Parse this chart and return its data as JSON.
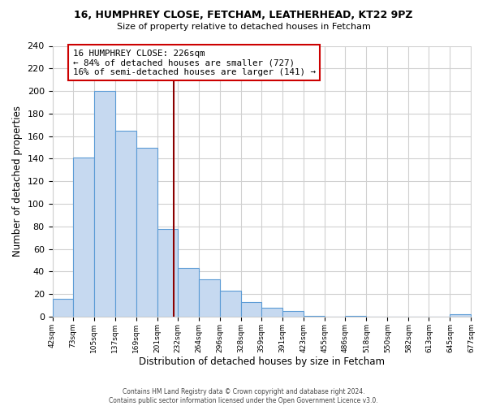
{
  "title": "16, HUMPHREY CLOSE, FETCHAM, LEATHERHEAD, KT22 9PZ",
  "subtitle": "Size of property relative to detached houses in Fetcham",
  "xlabel": "Distribution of detached houses by size in Fetcham",
  "ylabel": "Number of detached properties",
  "bin_edges": [
    42,
    73,
    105,
    137,
    169,
    201,
    232,
    264,
    296,
    328,
    359,
    391,
    423,
    455,
    486,
    518,
    550,
    582,
    613,
    645,
    677
  ],
  "bin_heights": [
    16,
    141,
    200,
    165,
    150,
    78,
    43,
    33,
    23,
    13,
    8,
    5,
    1,
    0,
    1,
    0,
    0,
    0,
    0,
    2
  ],
  "bar_color": "#c6d9f0",
  "bar_edge_color": "#5b9bd5",
  "property_value": 226,
  "vline_color": "#8b0000",
  "annotation_line1": "16 HUMPHREY CLOSE: 226sqm",
  "annotation_line2": "← 84% of detached houses are smaller (727)",
  "annotation_line3": "16% of semi-detached houses are larger (141) →",
  "annotation_box_color": "#ffffff",
  "annotation_box_edge_color": "#cc0000",
  "ylim": [
    0,
    240
  ],
  "yticks": [
    0,
    20,
    40,
    60,
    80,
    100,
    120,
    140,
    160,
    180,
    200,
    220,
    240
  ],
  "tick_labels": [
    "42sqm",
    "73sqm",
    "105sqm",
    "137sqm",
    "169sqm",
    "201sqm",
    "232sqm",
    "264sqm",
    "296sqm",
    "328sqm",
    "359sqm",
    "391sqm",
    "423sqm",
    "455sqm",
    "486sqm",
    "518sqm",
    "550sqm",
    "582sqm",
    "613sqm",
    "645sqm",
    "677sqm"
  ],
  "footer_text": "Contains HM Land Registry data © Crown copyright and database right 2024.\nContains public sector information licensed under the Open Government Licence v3.0.",
  "background_color": "#ffffff",
  "grid_color": "#d0d0d0"
}
